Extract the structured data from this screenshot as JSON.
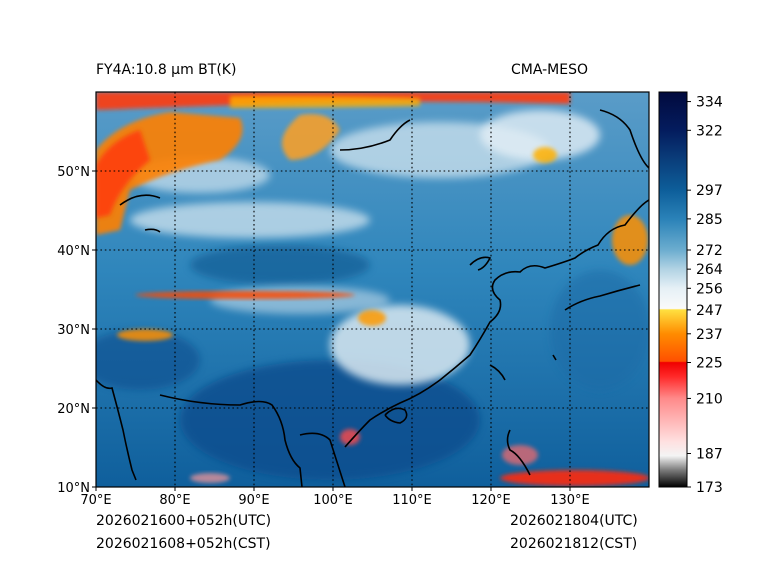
{
  "header": {
    "title_left": "FY4A:10.8 µm BT(K)",
    "title_right": "CMA-MESO"
  },
  "footer": {
    "init_utc": "2026021600+052h(UTC)",
    "init_cst": "2026021608+052h(CST)",
    "valid_utc": "2026021804(UTC)",
    "valid_cst": "2026021812(CST)"
  },
  "axes": {
    "lon_labels": [
      "70°E",
      "80°E",
      "90°E",
      "100°E",
      "110°E",
      "120°E",
      "130°E"
    ],
    "lat_labels": [
      "10°N",
      "20°N",
      "30°N",
      "40°N",
      "50°N"
    ],
    "lon_range": [
      70,
      140
    ],
    "lat_range": [
      10,
      60
    ]
  },
  "colorbar": {
    "range": [
      173,
      338
    ],
    "tick_labels": [
      "173",
      "187",
      "210",
      "225",
      "237",
      "247",
      "256",
      "264",
      "272",
      "285",
      "297",
      "322",
      "334"
    ],
    "stops": [
      {
        "t": 173,
        "color": "#000000"
      },
      {
        "t": 180,
        "color": "#7a7a7a"
      },
      {
        "t": 186,
        "color": "#f4f4f4"
      },
      {
        "t": 192,
        "color": "#ffe0e0"
      },
      {
        "t": 210,
        "color": "#ff8a8a"
      },
      {
        "t": 219,
        "color": "#ff2a2a"
      },
      {
        "t": 225,
        "color": "#f00000"
      },
      {
        "t": 225.5,
        "color": "#ff5000"
      },
      {
        "t": 237,
        "color": "#ff8c00"
      },
      {
        "t": 247,
        "color": "#ffe040"
      },
      {
        "t": 247.5,
        "color": "#fafafa"
      },
      {
        "t": 256,
        "color": "#e6f0f6"
      },
      {
        "t": 264,
        "color": "#b2d3e4"
      },
      {
        "t": 272,
        "color": "#6cadcf"
      },
      {
        "t": 285,
        "color": "#2a82b8"
      },
      {
        "t": 297,
        "color": "#0d5e9a"
      },
      {
        "t": 310,
        "color": "#0a3d7a"
      },
      {
        "t": 322,
        "color": "#041c5e"
      },
      {
        "t": 338,
        "color": "#020a3e"
      }
    ]
  }
}
